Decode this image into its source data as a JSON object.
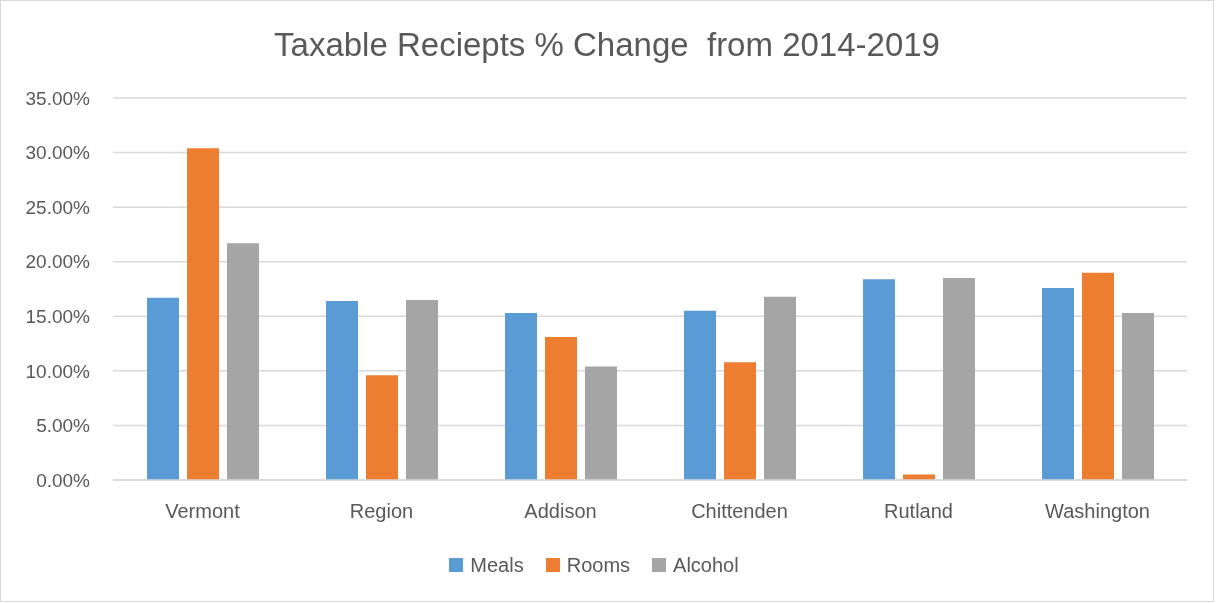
{
  "chart_data": {
    "type": "bar",
    "title": "Taxable Reciepts % Change  from 2014-2019",
    "categories": [
      "Vermont",
      "Region",
      "Addison",
      "Chittenden",
      "Rutland",
      "Washington"
    ],
    "series": [
      {
        "name": "Meals",
        "color": "#5b9bd5",
        "values": [
          16.7,
          16.4,
          15.3,
          15.5,
          18.4,
          17.6
        ]
      },
      {
        "name": "Rooms",
        "color": "#ed7d31",
        "values": [
          30.4,
          9.6,
          13.1,
          10.8,
          0.5,
          19.0
        ]
      },
      {
        "name": "Alcohol",
        "color": "#a5a5a5",
        "values": [
          21.7,
          16.5,
          10.4,
          16.8,
          18.5,
          15.3
        ]
      }
    ],
    "ylim": [
      0,
      35
    ],
    "yticks": [
      {
        "value": 0,
        "label": "0.00%"
      },
      {
        "value": 5,
        "label": "5.00%"
      },
      {
        "value": 10,
        "label": "10.00%"
      },
      {
        "value": 15,
        "label": "15.00%"
      },
      {
        "value": 20,
        "label": "20.00%"
      },
      {
        "value": 25,
        "label": "25.00%"
      },
      {
        "value": 30,
        "label": "30.00%"
      },
      {
        "value": 35,
        "label": "35.00%"
      }
    ],
    "grid": "y",
    "legend": "bottom"
  }
}
